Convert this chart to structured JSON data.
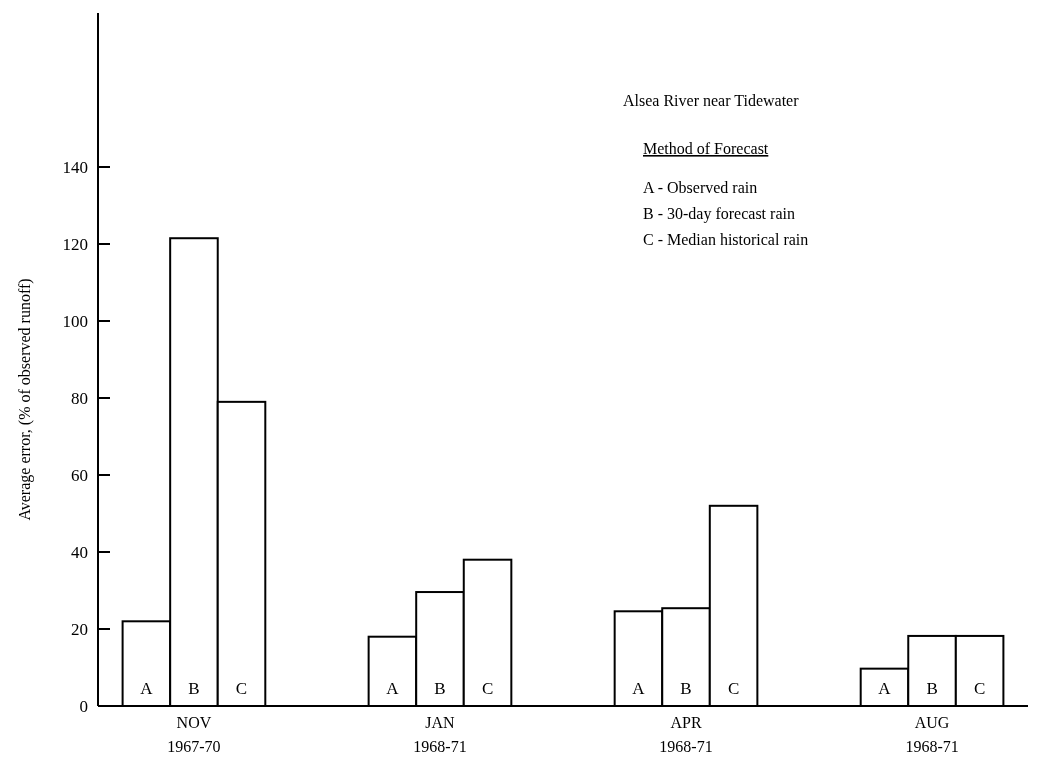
{
  "chart_data": {
    "type": "bar",
    "title": "Alsea River near Tidewater",
    "subtitle": "Method of Forecast",
    "ylabel": "Average error, (% of observed runoff)",
    "categories": [
      "NOV\n1967-70",
      "JAN\n1968-71",
      "APR\n1968-71",
      "AUG\n1968-71"
    ],
    "series": [
      {
        "name": "A",
        "color": "#ffffff",
        "values": [
          22,
          18,
          24.6,
          9.7
        ]
      },
      {
        "name": "B",
        "color": "#ffffff",
        "values": [
          121.5,
          29.6,
          25.4,
          18.2
        ]
      },
      {
        "name": "C",
        "color": "#ffffff",
        "values": [
          79,
          38,
          52,
          18.2
        ]
      }
    ],
    "ylim": [
      0,
      180
    ],
    "yticks": [
      0,
      20,
      40,
      60,
      80,
      100,
      120,
      140
    ],
    "annotations": [
      "A - Observed rain",
      "B - 30-day forecast rain",
      "C - Median historical rain"
    ]
  }
}
